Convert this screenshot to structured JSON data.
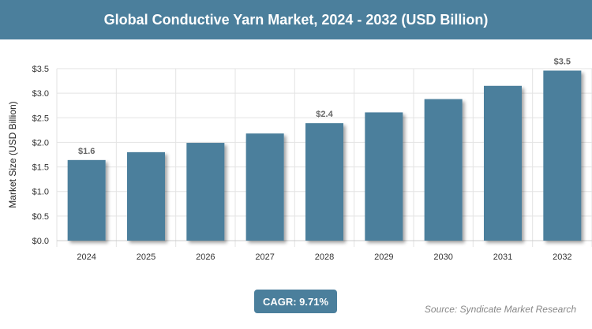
{
  "header": {
    "title": "Global Conductive Yarn Market, 2024 - 2032 (USD Billion)"
  },
  "chart_data": {
    "type": "bar",
    "title": "Global Conductive Yarn Market, 2024 - 2032 (USD Billion)",
    "xlabel": "",
    "ylabel": "Market Size (USD Billion)",
    "categories": [
      "2024",
      "2025",
      "2026",
      "2027",
      "2028",
      "2029",
      "2030",
      "2031",
      "2032"
    ],
    "values": [
      1.64,
      1.8,
      1.99,
      2.18,
      2.39,
      2.61,
      2.88,
      3.15,
      3.46
    ],
    "data_labels": {
      "0": "$1.6",
      "4": "$2.4",
      "8": "$3.5"
    },
    "ylim": [
      0,
      3.5
    ],
    "yticks": [
      "$0.0",
      "$0.5",
      "$1.0",
      "$1.5",
      "$2.0",
      "$2.5",
      "$3.0",
      "$3.5"
    ],
    "grid": true,
    "bar_color": "#4b7f9c"
  },
  "footer": {
    "cagr": "CAGR: 9.71%",
    "source": "Source: Syndicate Market Research"
  }
}
